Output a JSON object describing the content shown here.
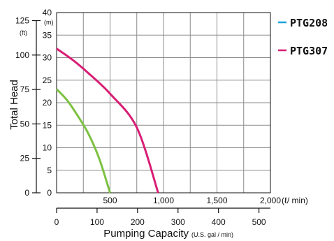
{
  "chart_data": {
    "type": "line",
    "ylabel": "Total Head",
    "xlabel": "Pumping Capacity",
    "xlabel_unit": "(U.S. gal / min)",
    "x_lpm": {
      "range": [
        0,
        2000
      ],
      "ticks": [
        500,
        1000,
        1500,
        2000
      ],
      "tick_labels": [
        "500",
        "1,000",
        "1,500",
        "2,000"
      ],
      "unit": "(ℓ/ min)",
      "gridlines": [
        0,
        250,
        500,
        750,
        1000,
        1250,
        1500,
        1750,
        2000
      ]
    },
    "x_gpm": {
      "range": [
        0,
        528.3
      ],
      "ticks": [
        0,
        100,
        200,
        300,
        400,
        500
      ],
      "tick_labels": [
        "0",
        "100",
        "200",
        "300",
        "400",
        "500"
      ]
    },
    "y_m": {
      "range": [
        0,
        40
      ],
      "ticks": [
        0,
        5,
        10,
        15,
        20,
        25,
        30,
        35,
        40
      ],
      "tick_labels": [
        "0",
        "5",
        "10",
        "15",
        "20",
        "25",
        "30",
        "35",
        "40"
      ],
      "unit": "(m)"
    },
    "y_ft": {
      "ticks": [
        0,
        25,
        50,
        75,
        100,
        125
      ],
      "tick_labels": [
        "0",
        "25",
        "50",
        "75",
        "100",
        "125"
      ],
      "unit": "(ft)"
    },
    "grid": true,
    "legend_position": "right",
    "series": [
      {
        "name": "PTG208",
        "legend_color": "#1aa3dc",
        "color": "#7dc142",
        "x_lpm": [
          0,
          100,
          200,
          300,
          400,
          500
        ],
        "y_m": [
          23,
          20.5,
          17,
          13,
          7.5,
          0
        ]
      },
      {
        "name": "PTG307",
        "legend_color": "#d81e75",
        "color": "#d81e75",
        "x_lpm": [
          0,
          150,
          300,
          500,
          750,
          950
        ],
        "y_m": [
          32,
          29.5,
          26.5,
          22,
          14.5,
          0
        ]
      }
    ]
  }
}
